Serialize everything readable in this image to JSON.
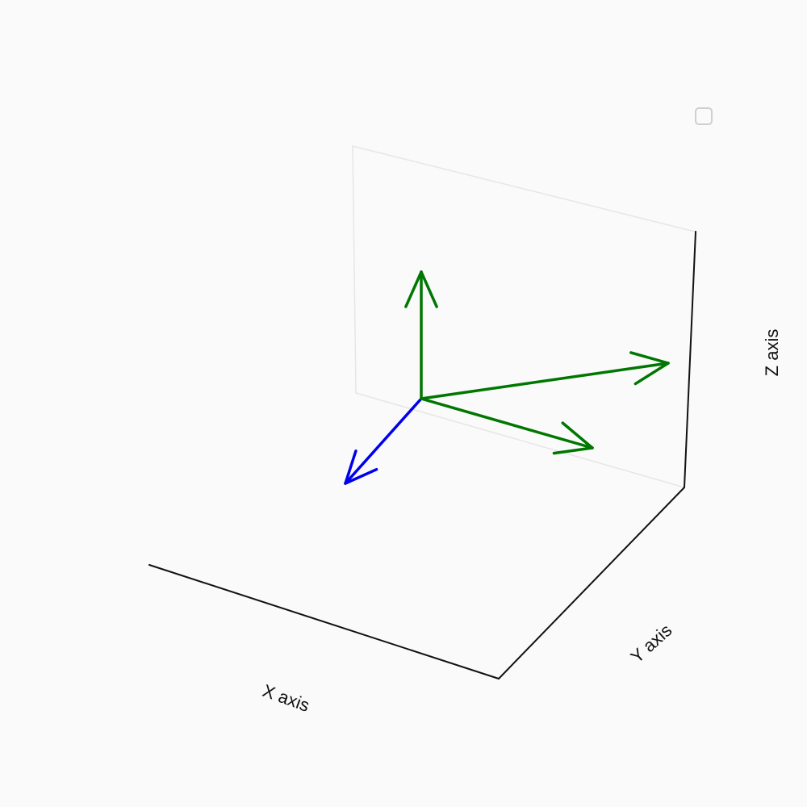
{
  "chart_data": {
    "type": "quiver3d",
    "title": "",
    "xlabel": "X axis",
    "ylabel": "Y axis",
    "zlabel": "Z axis",
    "legend": "top-right",
    "grid": false,
    "colors": {
      "background": "#fafafa",
      "pane_edge": "#e6e6e6",
      "axis_line": "#111111",
      "legend_border": "#cfcfcf"
    },
    "series": [
      {
        "color": "#0000ee",
        "vectors": [
          {
            "origin": [
              0,
              0,
              0
            ],
            "direction": [
              1,
              0,
              0
            ]
          }
        ]
      },
      {
        "color": "#007700",
        "vectors": [
          {
            "origin": [
              0,
              0,
              0
            ],
            "direction": [
              0,
              1,
              0
            ]
          },
          {
            "origin": [
              0,
              0,
              0
            ],
            "direction": [
              0,
              0,
              1
            ]
          },
          {
            "origin": [
              0,
              0,
              0
            ],
            "direction": [
              -1,
              1,
              0
            ]
          }
        ]
      }
    ]
  }
}
